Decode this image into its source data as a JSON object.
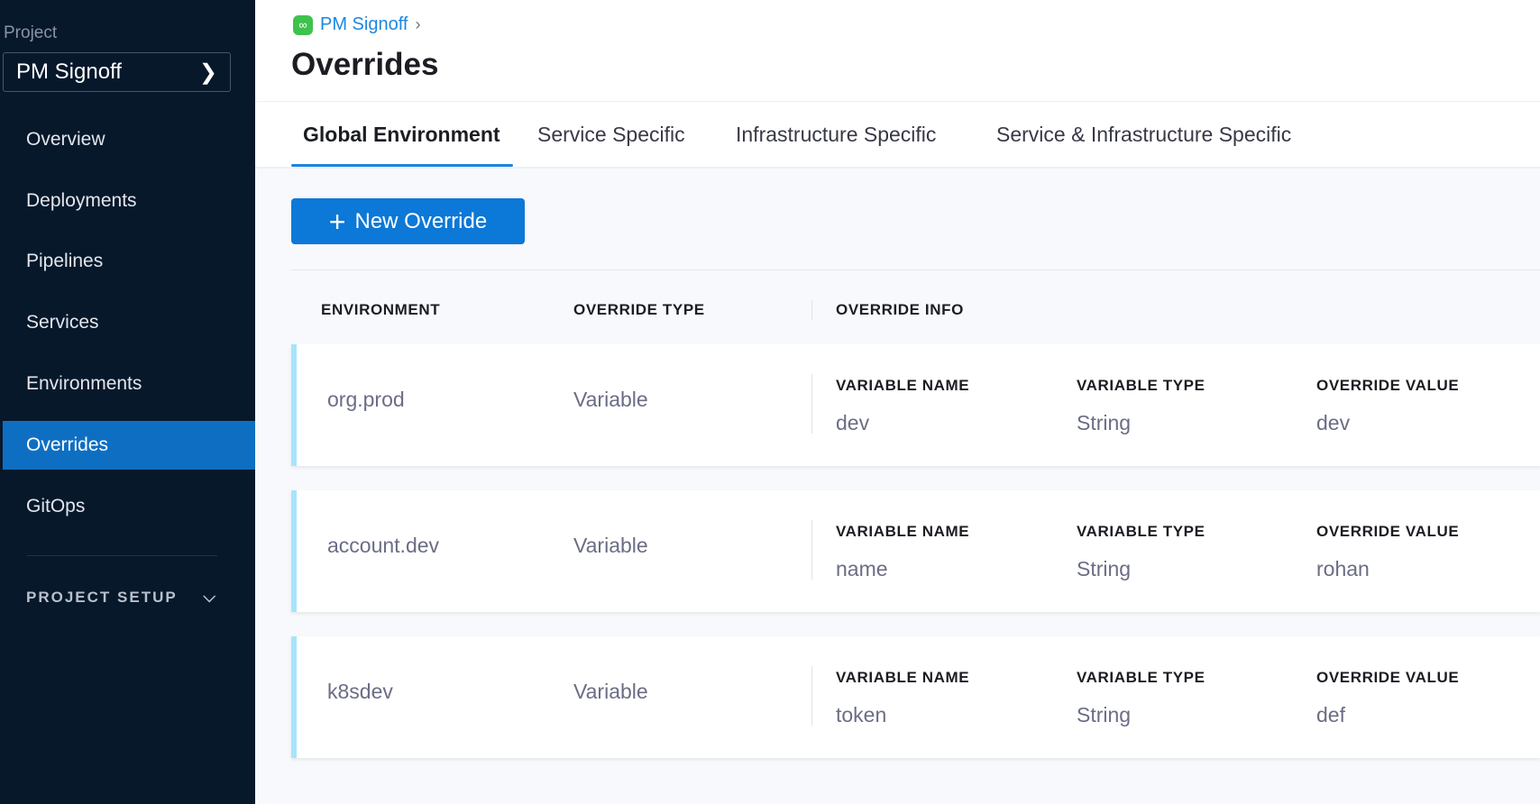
{
  "sidebar": {
    "project_label": "Project",
    "project_name": "PM Signoff",
    "items": [
      {
        "label": "Overview",
        "active": false
      },
      {
        "label": "Deployments",
        "active": false
      },
      {
        "label": "Pipelines",
        "active": false
      },
      {
        "label": "Services",
        "active": false
      },
      {
        "label": "Environments",
        "active": false
      },
      {
        "label": "Overrides",
        "active": true
      },
      {
        "label": "GitOps",
        "active": false
      }
    ],
    "project_setup": "PROJECT SETUP"
  },
  "header": {
    "breadcrumb": "PM Signoff",
    "title": "Overrides"
  },
  "tabs": [
    {
      "label": "Global Environment",
      "active": true
    },
    {
      "label": "Service Specific"
    },
    {
      "label": "Infrastructure Specific"
    },
    {
      "label": "Service & Infrastructure Specific"
    }
  ],
  "new_override_label": "New Override",
  "table": {
    "headers": [
      "ENVIRONMENT",
      "OVERRIDE TYPE",
      "OVERRIDE INFO"
    ],
    "info_labels": [
      "VARIABLE NAME",
      "VARIABLE TYPE",
      "OVERRIDE VALUE"
    ],
    "rows": [
      {
        "environment": "org.prod",
        "type": "Variable",
        "variable_name": "dev",
        "variable_type": "String",
        "override_value": "dev"
      },
      {
        "environment": "account.dev",
        "type": "Variable",
        "variable_name": "name",
        "variable_type": "String",
        "override_value": "rohan"
      },
      {
        "environment": "k8sdev",
        "type": "Variable",
        "variable_name": "token",
        "variable_type": "String",
        "override_value": "def"
      }
    ]
  },
  "colors": {
    "sidebar": "#07182b",
    "accent": "#0c78d7",
    "card_border": "#a6e5fb"
  }
}
